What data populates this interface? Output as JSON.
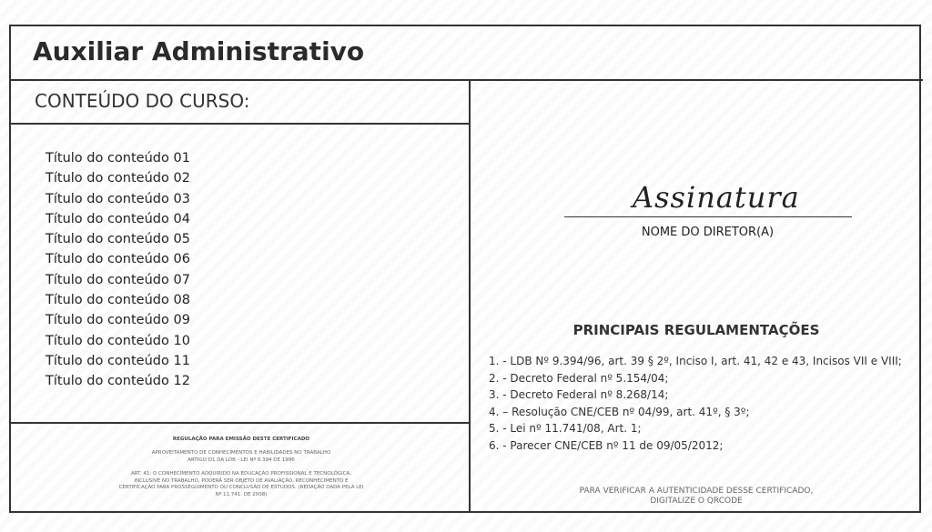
{
  "header": {
    "title": "Auxiliar Administrativo"
  },
  "left": {
    "section_title": "CONTEÚDO DO CURSO:",
    "items": [
      "Título do conteúdo 01",
      "Título do conteúdo 02",
      "Título do conteúdo 03",
      "Título do conteúdo 04",
      "Título do conteúdo 05",
      "Título do conteúdo 06",
      "Título do conteúdo 07",
      "Título do conteúdo 08",
      "Título do conteúdo 09",
      "Título do conteúdo 10",
      "Título do conteúdo 11",
      "Título do conteúdo 12"
    ],
    "regulation": {
      "heading": "REGULAÇÃO PARA EMISSÃO DESTE CERTIFICADO",
      "line1": "APROVEITAMENTO DE CONHECIMENTOS E HABILIDADES NO TRABALHO",
      "line2": "ARTIGO D1 DA LDB - LEI Nº 9.394 DE 1996",
      "art": "ART. 41: O CONHECIMENTO ADQUIRIDO NA EDUCAÇÃO PROFISSIONAL E TECNOLÓGICA, INCLUSIVE NO TRABALHO, PODERÁ SER OBJETO DE AVALIAÇÃO, RECONHECIMENTO E CERTIFICAÇÃO PARA PROSSEGUIMENTO OU CONCLUSÃO DE ESTUDOS. (REDAÇÃO DADA PELA LEI Nº 11.741. DE 2008)"
    }
  },
  "right": {
    "signature": "Assinatura",
    "director": "NOME DO DIRETOR(A)",
    "regs_title": "PRINCIPAIS REGULAMENTAÇÕES",
    "regs": [
      "1. - LDB Nº 9.394/96, art. 39 § 2º, Inciso I, art. 41, 42 e 43, Incisos VII e VIII;",
      "2. - Decreto Federal nº 5.154/04;",
      "3. - Decreto Federal nº 8.268/14;",
      "4. – Resolução CNE/CEB nº 04/99, art. 41º, § 3º;",
      "5. - Lei nº 11.741/08, Art. 1;",
      "6. - Parecer CNE/CEB nº 11 de 09/05/2012;"
    ],
    "verify1": "PARA VERIFICAR A AUTENTICIDADE DESSE CERTIFICADO,",
    "verify2": "DIGITALIZE O QRCODE"
  }
}
